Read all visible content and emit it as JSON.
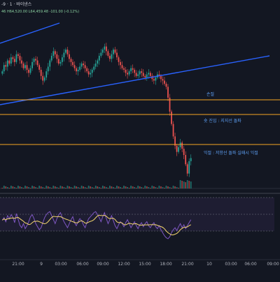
{
  "header": {
    "title": "-9 · 1 · 바이낸스",
    "ohlc": "46  H64,520.00  L64,459.48  -101.00 (-0.12%)"
  },
  "annotations": {
    "level_1": "손절",
    "level_2": "숏 진입 : 지지선 돌파",
    "level_3": "익절 : 저항선 돌파 실패시 익절"
  },
  "colors": {
    "background": "#131722",
    "level_line": "#f5a623",
    "trend_line": "#2962ff",
    "candle_up": "#26a69a",
    "candle_down": "#ef5350",
    "rsi_line": "#7e57c2",
    "rsi_ma": "#f5d76e"
  },
  "chart_data": {
    "type": "candlestick",
    "x_ticks": [
      "18:00",
      "21:00",
      "9",
      "03:00",
      "06:00",
      "09:00",
      "12:00",
      "15:00",
      "18:00",
      "21:00",
      "10",
      "03:00",
      "06:00",
      "09:00"
    ],
    "levels": [
      {
        "name": "손절"
      },
      {
        "name": "숏 진입 : 지지선 돌파"
      },
      {
        "name": "익절 : 저항선 돌파 실패시 익절"
      }
    ],
    "close_series": [
      72,
      76,
      75,
      79,
      77,
      81,
      80,
      78,
      83,
      82,
      79,
      77,
      74,
      76,
      73,
      71,
      74,
      78,
      80,
      79,
      76,
      73,
      69,
      66,
      68,
      72,
      75,
      79,
      82,
      85,
      83,
      80,
      77,
      78,
      81,
      84,
      86,
      83,
      80,
      78,
      76,
      74,
      72,
      73,
      75,
      77,
      76,
      74,
      72,
      70,
      71,
      73,
      75,
      77,
      79,
      82,
      84,
      86,
      88,
      85,
      82,
      80,
      83,
      86,
      84,
      81,
      78,
      76,
      74,
      73,
      71,
      70,
      72,
      74,
      73,
      71,
      69,
      70,
      72,
      71,
      69,
      68,
      70,
      71,
      69,
      67,
      66,
      68,
      70,
      69,
      67,
      66,
      64,
      62,
      55,
      46,
      38,
      30,
      24,
      20,
      23,
      26,
      22,
      18,
      12,
      6,
      14,
      16
    ],
    "rsi_series": [
      55,
      60,
      52,
      64,
      58,
      66,
      61,
      50,
      68,
      57,
      45,
      40,
      48,
      38,
      44,
      52,
      62,
      66,
      58,
      48,
      42,
      36,
      40,
      50,
      60,
      66,
      70,
      72,
      64,
      56,
      48,
      58,
      66,
      70,
      60,
      52,
      46,
      40,
      48,
      56,
      62,
      50,
      44,
      52,
      58,
      54,
      46,
      40,
      50,
      58,
      62,
      66,
      70,
      72,
      66,
      60,
      52,
      62,
      70,
      58,
      48,
      56,
      64,
      54,
      44,
      38,
      46,
      52,
      48,
      42,
      50,
      56,
      48,
      40,
      46,
      52,
      44,
      38,
      46,
      50,
      42,
      48,
      52,
      44,
      40,
      46,
      50,
      42,
      38,
      44,
      36,
      30,
      24,
      20,
      18,
      22,
      30,
      36,
      40,
      34,
      42,
      48,
      40,
      46,
      38,
      44,
      50,
      56
    ]
  }
}
